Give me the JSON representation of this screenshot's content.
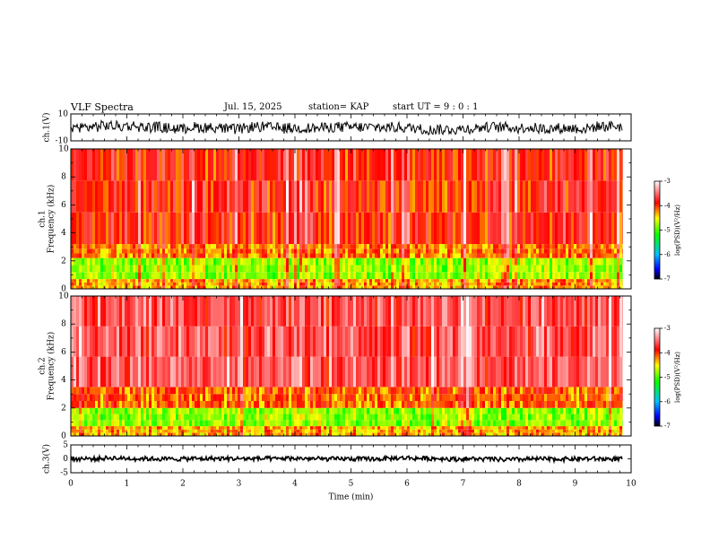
{
  "header": {
    "title": "VLF Spectra",
    "date": "Jul. 15, 2025",
    "station": "station= KAP",
    "start_ut": "start UT =  9 : 0 : 1"
  },
  "chart_data": [
    {
      "type": "line",
      "panel": "ch1-waveform",
      "ylabel": "ch.1(V)",
      "ylim": [
        -10,
        10
      ],
      "yticklabels": [
        "-10",
        "10"
      ],
      "xlim": [
        0,
        10
      ],
      "series": [
        {
          "x_range": [
            0,
            9.85
          ],
          "level_approx": 0,
          "amplitude_approx": 4
        }
      ],
      "color": "#000000"
    },
    {
      "type": "heatmap",
      "panel": "ch1-spectrogram",
      "ylabel": "ch.1\nFrequency (kHz)",
      "ylim": [
        0,
        10
      ],
      "yticks": [
        0,
        2,
        4,
        6,
        8,
        10
      ],
      "xlim": [
        0,
        10
      ],
      "x_data_range": [
        0,
        9.85
      ],
      "intensity_bands": [
        {
          "freq_khz": [
            0,
            0.7
          ],
          "log_psd": -4.3
        },
        {
          "freq_khz": [
            0.7,
            2.2
          ],
          "log_psd": -4.8
        },
        {
          "freq_khz": [
            2.2,
            3.2
          ],
          "log_psd": -4.2
        },
        {
          "freq_khz": [
            3.2,
            10
          ],
          "log_psd": -3.9
        }
      ],
      "colorbar": {
        "label": "log(PSD)(V²/Hz)",
        "range": [
          -7,
          -3
        ],
        "ticks": [
          "-3",
          "-4",
          "-5",
          "-6",
          "-7"
        ]
      }
    },
    {
      "type": "heatmap",
      "panel": "ch2-spectrogram",
      "ylabel": "ch.2\nFrequency (kHz)",
      "ylim": [
        0,
        10
      ],
      "yticks": [
        0,
        2,
        4,
        6,
        8,
        10
      ],
      "xlim": [
        0,
        10
      ],
      "x_data_range": [
        0,
        9.85
      ],
      "intensity_bands": [
        {
          "freq_khz": [
            0,
            0.7
          ],
          "log_psd": -4.3
        },
        {
          "freq_khz": [
            0.7,
            2.0
          ],
          "log_psd": -4.8
        },
        {
          "freq_khz": [
            2.0,
            3.5
          ],
          "log_psd": -4.1
        },
        {
          "freq_khz": [
            3.5,
            10
          ],
          "log_psd": -3.6
        }
      ],
      "colorbar": {
        "label": "log(PSD)(V²/Hz)",
        "range": [
          -7,
          -3
        ],
        "ticks": [
          "-3",
          "-4",
          "-5",
          "-6",
          "-7"
        ]
      }
    },
    {
      "type": "line",
      "panel": "ch3-waveform",
      "ylabel": "ch.3(V)",
      "ylim": [
        -5,
        5
      ],
      "yticklabels": [
        "-5",
        "0",
        "5"
      ],
      "xlim": [
        0,
        10
      ],
      "series": [
        {
          "x_range": [
            0,
            9.85
          ],
          "level_approx": 0,
          "amplitude_approx": 0.8
        }
      ],
      "color": "#000000"
    }
  ],
  "x_axis": {
    "label": "Time (min)",
    "ticks": [
      "0",
      "1",
      "2",
      "3",
      "4",
      "5",
      "6",
      "7",
      "8",
      "9",
      "10"
    ]
  }
}
